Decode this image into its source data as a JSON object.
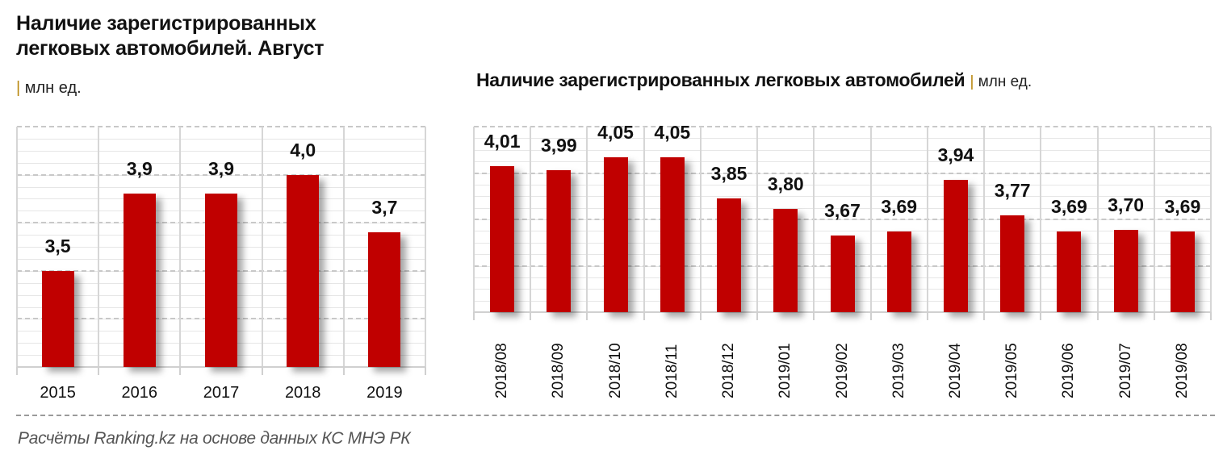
{
  "left_chart": {
    "title_line1": "Наличие зарегистрированных",
    "title_line2": "легковых автомобилей. Август",
    "unit_separator": "|",
    "unit": "млн ед."
  },
  "right_chart": {
    "title": "Наличие зарегистрированных легковых автомобилей",
    "unit_separator": "|",
    "unit": "млн ед."
  },
  "footer": {
    "source": "Расчёты Ranking.kz на основе данных КС МНЭ РК"
  },
  "colors": {
    "bar": "#c00000",
    "grid": "#c8c8c8",
    "text": "#111111",
    "source_text": "#555555"
  },
  "chart_data": [
    {
      "type": "bar",
      "title": "Наличие зарегистрированных легковых автомобилей. Август",
      "subtitle": "млн ед.",
      "xlabel": "",
      "ylabel": "",
      "categories": [
        "2015",
        "2016",
        "2017",
        "2018",
        "2019"
      ],
      "values": [
        3.5,
        3.9,
        3.9,
        4.0,
        3.7
      ],
      "value_labels": [
        "3,5",
        "3,9",
        "3,9",
        "4,0",
        "3,7"
      ],
      "ylim": [
        3.0,
        4.25
      ],
      "grid": true,
      "legend": null
    },
    {
      "type": "bar",
      "title": "Наличие зарегистрированных легковых автомобилей",
      "subtitle": "млн ед.",
      "xlabel": "",
      "ylabel": "",
      "categories": [
        "2018/08",
        "2018/09",
        "2018/10",
        "2018/11",
        "2018/12",
        "2019/01",
        "2019/02",
        "2019/03",
        "2019/04",
        "2019/05",
        "2019/06",
        "2019/07",
        "2019/08"
      ],
      "values": [
        4.01,
        3.99,
        4.05,
        4.05,
        3.85,
        3.8,
        3.67,
        3.69,
        3.94,
        3.77,
        3.69,
        3.7,
        3.69
      ],
      "value_labels": [
        "4,01",
        "3,99",
        "4,05",
        "4,05",
        "3,85",
        "3,80",
        "3,67",
        "3,69",
        "3,94",
        "3,77",
        "3,69",
        "3,70",
        "3,69"
      ],
      "ylim": [
        3.3,
        4.2
      ],
      "grid": true,
      "legend": null
    }
  ]
}
